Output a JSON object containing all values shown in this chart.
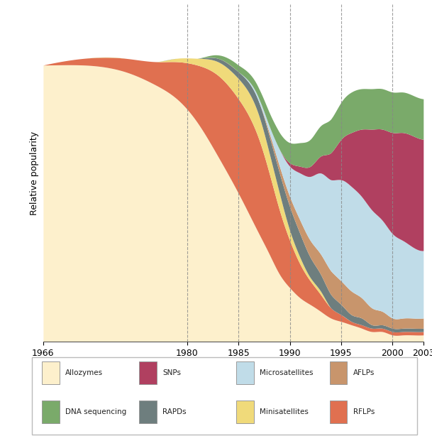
{
  "ylabel": "Relative popularity",
  "background_color": "#ffffff",
  "colors": {
    "Allozymes": "#fdf0cc",
    "RFLPs": "#e07050",
    "Minisatellites": "#f0da7a",
    "AFLPs": "#c8956c",
    "RAPDs": "#6e7e7e",
    "Microsatellites": "#c0dce8",
    "SNPs": "#b04060",
    "DNA sequencing": "#7aaa6a"
  },
  "plot_order": [
    "Allozymes",
    "RFLPs",
    "Minisatellites",
    "RAPDs",
    "AFLPs",
    "Microsatellites",
    "SNPs",
    "DNA sequencing"
  ],
  "legend_order": [
    "Allozymes",
    "SNPs",
    "Microsatellites",
    "AFLPs",
    "DNA sequencing",
    "RAPDs",
    "Minisatellites",
    "RFLPs"
  ],
  "years": [
    1966,
    1970,
    1974,
    1977,
    1979,
    1981,
    1983,
    1985,
    1987,
    1988,
    1989,
    1990,
    1991,
    1992,
    1993,
    1994,
    1995,
    1996,
    1997,
    1998,
    1999,
    2000,
    2001,
    2002,
    2003
  ],
  "data": {
    "Allozymes": [
      82,
      82,
      80,
      76,
      72,
      65,
      55,
      44,
      32,
      26,
      20,
      16,
      13,
      11,
      9,
      7,
      6,
      5,
      4,
      3,
      3,
      2,
      2,
      2,
      2
    ],
    "RFLPs": [
      0,
      2,
      4,
      7,
      11,
      17,
      24,
      28,
      28,
      24,
      19,
      14,
      10,
      7,
      5,
      3,
      2,
      1,
      1,
      1,
      1,
      1,
      1,
      1,
      1
    ],
    "Minisatellites": [
      0,
      0,
      0,
      0,
      1,
      2,
      4,
      6,
      7,
      6,
      5,
      3,
      2,
      1,
      1,
      0,
      0,
      0,
      0,
      0,
      0,
      0,
      0,
      0,
      0
    ],
    "RAPDs": [
      0,
      0,
      0,
      0,
      0,
      0,
      1,
      2,
      4,
      5,
      6,
      7,
      7,
      6,
      5,
      4,
      3,
      2,
      2,
      1,
      1,
      1,
      1,
      1,
      1
    ],
    "AFLPs": [
      0,
      0,
      0,
      0,
      0,
      0,
      0,
      0,
      0,
      1,
      2,
      3,
      4,
      5,
      6,
      7,
      7,
      7,
      6,
      5,
      4,
      3,
      3,
      3,
      3
    ],
    "Microsatellites": [
      0,
      0,
      0,
      0,
      0,
      0,
      0,
      0,
      1,
      2,
      5,
      9,
      14,
      19,
      24,
      27,
      30,
      31,
      30,
      29,
      27,
      25,
      23,
      21,
      20
    ],
    "SNPs": [
      0,
      0,
      0,
      0,
      0,
      0,
      0,
      0,
      0,
      0,
      0,
      1,
      2,
      3,
      5,
      8,
      12,
      16,
      20,
      24,
      27,
      30,
      32,
      33,
      33
    ],
    "DNA sequencing": [
      0,
      0,
      0,
      0,
      0,
      0,
      1,
      2,
      3,
      4,
      5,
      6,
      7,
      8,
      9,
      10,
      11,
      12,
      12,
      12,
      12,
      12,
      12,
      12,
      12
    ]
  },
  "vlines": [
    1980,
    1985,
    1990,
    1995,
    2000
  ],
  "xtick_positions": [
    1966,
    1980,
    1985,
    1990,
    1995,
    2000,
    2003
  ],
  "xtick_labels": [
    "1966",
    "1980",
    "1985",
    "1990",
    "1995",
    "2000",
    "2003"
  ],
  "xlim": [
    1966,
    2003
  ],
  "ylim": [
    0,
    100
  ]
}
